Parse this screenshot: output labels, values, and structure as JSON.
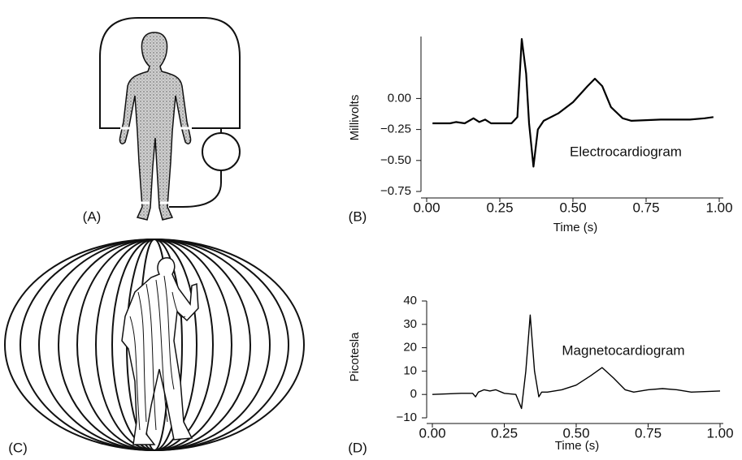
{
  "panels": {
    "a": "(A)",
    "c": "(C)"
  },
  "chart_data": [
    {
      "type": "line",
      "panel_label": "(B)",
      "ylabel": "Millivolts",
      "xlabel": "Time (s)",
      "annotation": "Electrocardiogram",
      "color": "#000000",
      "x": [
        0.02,
        0.08,
        0.1,
        0.13,
        0.16,
        0.18,
        0.2,
        0.22,
        0.25,
        0.29,
        0.31,
        0.325,
        0.34,
        0.35,
        0.365,
        0.38,
        0.4,
        0.45,
        0.5,
        0.55,
        0.575,
        0.6,
        0.63,
        0.67,
        0.7,
        0.8,
        0.9,
        0.95,
        0.98
      ],
      "values": [
        -0.2,
        -0.2,
        -0.19,
        -0.2,
        -0.16,
        -0.19,
        -0.17,
        -0.2,
        -0.2,
        -0.2,
        -0.15,
        0.48,
        0.2,
        -0.2,
        -0.55,
        -0.25,
        -0.18,
        -0.12,
        -0.03,
        0.1,
        0.16,
        0.1,
        -0.07,
        -0.16,
        -0.18,
        -0.17,
        -0.17,
        -0.16,
        -0.15
      ],
      "xlim": [
        0,
        1
      ],
      "ylim": [
        -0.75,
        0.5
      ],
      "xticks": [
        {
          "value": 0,
          "label": "0.00"
        },
        {
          "value": 0.25,
          "label": "0.25"
        },
        {
          "value": 0.5,
          "label": "0.50"
        },
        {
          "value": 0.75,
          "label": "0.75"
        },
        {
          "value": 1,
          "label": "1.00"
        }
      ],
      "yticks": [
        {
          "value": -0.75,
          "label": "−0.75"
        },
        {
          "value": -0.5,
          "label": "−0.50"
        },
        {
          "value": -0.25,
          "label": "−0.25"
        },
        {
          "value": 0,
          "label": "0.00"
        }
      ]
    },
    {
      "type": "line",
      "panel_label": "(D)",
      "ylabel": "Picotesla",
      "xlabel": "Time (s)",
      "annotation": "Magnetocardiogram",
      "color": "#000000",
      "x": [
        0,
        0.1,
        0.14,
        0.15,
        0.16,
        0.18,
        0.2,
        0.22,
        0.25,
        0.29,
        0.31,
        0.325,
        0.34,
        0.355,
        0.37,
        0.38,
        0.4,
        0.45,
        0.5,
        0.55,
        0.59,
        0.63,
        0.67,
        0.7,
        0.75,
        0.8,
        0.85,
        0.9,
        1
      ],
      "values": [
        0,
        0.5,
        0.5,
        -1,
        1,
        2,
        1.5,
        2,
        0.5,
        0,
        -6,
        10,
        34,
        10,
        -1,
        1,
        1,
        2,
        4,
        8,
        11.5,
        7,
        2,
        1,
        2,
        2.5,
        2,
        1,
        1.5
      ],
      "xlim": [
        0,
        1
      ],
      "ylim": [
        -10,
        40
      ],
      "xticks": [
        {
          "value": 0,
          "label": "0.00"
        },
        {
          "value": 0.25,
          "label": "0.25"
        },
        {
          "value": 0.5,
          "label": "0.50"
        },
        {
          "value": 0.75,
          "label": "0.75"
        },
        {
          "value": 1,
          "label": "1.00"
        }
      ],
      "yticks": [
        {
          "value": -10,
          "label": "−10"
        },
        0,
        10,
        20,
        30,
        40
      ]
    }
  ]
}
